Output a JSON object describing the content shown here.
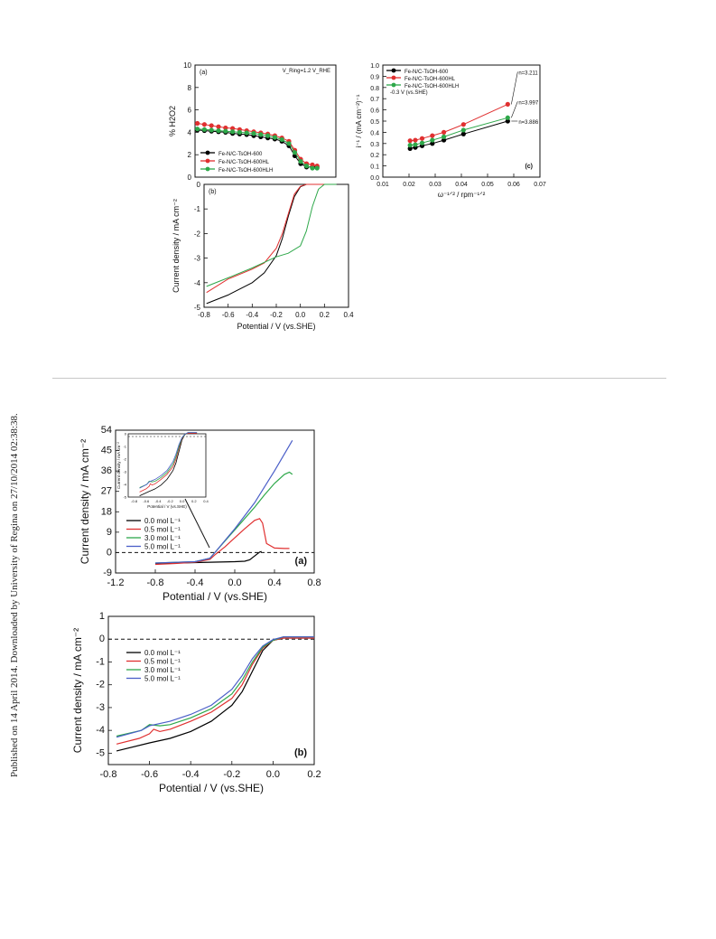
{
  "side_note": "Published on 14 April 2014. Downloaded by University of Regina on 27/10/2014 02:38:38.",
  "chart_data": [
    {
      "type": "scatter",
      "panel_label": "(a)",
      "annotation": "V_Ring=1.2 V_RHE",
      "xlabel": "",
      "ylabel": "% H2O2",
      "xlim": [
        -0.8,
        0.4
      ],
      "ylim": [
        0,
        10
      ],
      "yticks": [
        "0",
        "2",
        "4",
        "6",
        "8",
        "10"
      ],
      "legend_position": "lower-left",
      "series": [
        {
          "name": "Fe-N/C-TsOH-600",
          "color": "#000000",
          "x": [
            -0.78,
            -0.72,
            -0.66,
            -0.6,
            -0.54,
            -0.48,
            -0.42,
            -0.36,
            -0.3,
            -0.24,
            -0.18,
            -0.12,
            -0.06,
            0.0,
            0.05,
            0.1,
            0.15,
            0.2,
            0.24
          ],
          "y": [
            4.2,
            4.15,
            4.1,
            4.05,
            4.0,
            3.9,
            3.85,
            3.8,
            3.7,
            3.6,
            3.5,
            3.4,
            3.2,
            2.8,
            1.9,
            1.2,
            0.9,
            0.9,
            0.9
          ]
        },
        {
          "name": "Fe-N/C-TsOH-600HL",
          "color": "#e03030",
          "x": [
            -0.78,
            -0.72,
            -0.66,
            -0.6,
            -0.54,
            -0.48,
            -0.42,
            -0.36,
            -0.3,
            -0.24,
            -0.18,
            -0.12,
            -0.06,
            0.0,
            0.05,
            0.1,
            0.15,
            0.2,
            0.24
          ],
          "y": [
            4.8,
            4.7,
            4.6,
            4.5,
            4.4,
            4.35,
            4.25,
            4.15,
            4.05,
            3.95,
            3.85,
            3.7,
            3.5,
            3.2,
            2.4,
            1.6,
            1.2,
            1.1,
            1.0
          ]
        },
        {
          "name": "Fe-N/C-TsOH-600HLH",
          "color": "#2ea84a",
          "x": [
            -0.78,
            -0.72,
            -0.66,
            -0.6,
            -0.54,
            -0.48,
            -0.42,
            -0.36,
            -0.3,
            -0.24,
            -0.18,
            -0.12,
            -0.06,
            0.0,
            0.05,
            0.1,
            0.15,
            0.2,
            0.24
          ],
          "y": [
            4.3,
            4.25,
            4.2,
            4.15,
            4.1,
            4.05,
            4.0,
            3.95,
            3.9,
            3.8,
            3.7,
            3.55,
            3.35,
            3.0,
            2.2,
            1.4,
            1.0,
            0.8,
            0.8
          ]
        }
      ]
    },
    {
      "type": "line",
      "panel_label": "(b)",
      "xlabel": "Potential / V (vs.SHE)",
      "ylabel": "Current density / mA cm⁻²",
      "xlim": [
        -0.8,
        0.4
      ],
      "ylim": [
        -5,
        0
      ],
      "xticks": [
        "-0.8",
        "-0.6",
        "-0.4",
        "-0.2",
        "0.0",
        "0.2",
        "0.4"
      ],
      "yticks": [
        "0",
        "-1",
        "-2",
        "-3",
        "-4",
        "-5"
      ],
      "series": [
        {
          "name": "Fe-N/C-TsOH-600",
          "color": "#000000",
          "x": [
            -0.78,
            -0.6,
            -0.4,
            -0.3,
            -0.2,
            -0.15,
            -0.1,
            -0.05,
            0.0,
            0.05,
            0.1,
            0.2,
            0.25
          ],
          "y": [
            -4.85,
            -4.5,
            -4.0,
            -3.6,
            -2.9,
            -2.2,
            -1.3,
            -0.5,
            -0.1,
            0.0,
            0.0,
            0.0,
            0.0
          ]
        },
        {
          "name": "Fe-N/C-TsOH-600HL",
          "color": "#e03030",
          "x": [
            -0.78,
            -0.6,
            -0.4,
            -0.3,
            -0.2,
            -0.15,
            -0.1,
            -0.05,
            0.0,
            0.05,
            0.1,
            0.2,
            0.25
          ],
          "y": [
            -4.4,
            -3.85,
            -3.45,
            -3.2,
            -2.6,
            -2.0,
            -1.2,
            -0.4,
            -0.08,
            0.0,
            0.0,
            0.0,
            0.0
          ]
        },
        {
          "name": "Fe-N/C-TsOH-600HLH",
          "color": "#2ea84a",
          "x": [
            -0.78,
            -0.6,
            -0.4,
            -0.2,
            -0.1,
            0.0,
            0.05,
            0.1,
            0.15,
            0.2,
            0.3
          ],
          "y": [
            -4.15,
            -3.8,
            -3.4,
            -2.95,
            -2.8,
            -2.5,
            -1.9,
            -0.9,
            -0.2,
            0.0,
            0.0
          ]
        }
      ]
    },
    {
      "type": "scatter",
      "panel_label": "(c)",
      "annotation": "-0.3 V (vs.SHE)",
      "xlabel": "ω⁻¹ᐟ² / rpm⁻¹ᐟ²",
      "ylabel": "i⁻¹ / (mA cm⁻²)⁻¹",
      "xlim": [
        0.01,
        0.07
      ],
      "ylim": [
        0,
        1.0
      ],
      "xticks": [
        "0.01",
        "0.02",
        "0.03",
        "0.04",
        "0.05",
        "0.06",
        "0.07"
      ],
      "yticks": [
        "0.0",
        "0.1",
        "0.2",
        "0.3",
        "0.4",
        "0.5",
        "0.6",
        "0.7",
        "0.8",
        "0.9",
        "1.0"
      ],
      "legend_position": "top-left",
      "series": [
        {
          "name": "Fe-N/C-TsOH-600",
          "color": "#000000",
          "fit_label": "n=3.886",
          "x": [
            0.0204,
            0.0224,
            0.025,
            0.0289,
            0.0333,
            0.0408,
            0.0577
          ],
          "y": [
            0.255,
            0.265,
            0.28,
            0.3,
            0.33,
            0.385,
            0.5
          ]
        },
        {
          "name": "Fe-N/C-TsOH-600HL",
          "color": "#e03030",
          "fit_label": "n=3.211",
          "x": [
            0.0204,
            0.0224,
            0.025,
            0.0289,
            0.0333,
            0.0408,
            0.0577
          ],
          "y": [
            0.325,
            0.33,
            0.345,
            0.37,
            0.4,
            0.47,
            0.65
          ]
        },
        {
          "name": "Fe-N/C-TsOH-600HLH",
          "color": "#2ea84a",
          "fit_label": "n=3.997",
          "x": [
            0.0204,
            0.0224,
            0.025,
            0.0289,
            0.0333,
            0.0408,
            0.0577
          ],
          "y": [
            0.285,
            0.29,
            0.305,
            0.33,
            0.36,
            0.42,
            0.53
          ]
        }
      ]
    },
    {
      "type": "line",
      "panel_label": "(a)",
      "xlabel": "Potential / V (vs.SHE)",
      "ylabel": "Current density / mA cm⁻²",
      "xlim": [
        -1.2,
        0.8
      ],
      "ylim": [
        -9,
        54
      ],
      "xticks": [
        "-1.2",
        "-0.8",
        "-0.4",
        "0.0",
        "0.4",
        "0.8"
      ],
      "yticks": [
        "-9",
        "0",
        "9",
        "18",
        "27",
        "36",
        "45",
        "54"
      ],
      "legend_position": "lower-left",
      "series": [
        {
          "name": "0.0 mol L⁻¹",
          "color": "#000000",
          "x": [
            -0.8,
            -0.6,
            -0.4,
            -0.2,
            0.0,
            0.1,
            0.15,
            0.2,
            0.25,
            0.27
          ],
          "y": [
            -4.8,
            -4.6,
            -4.4,
            -4.2,
            -4.0,
            -3.8,
            -3.2,
            -1.5,
            0.2,
            0.5
          ]
        },
        {
          "name": "0.5 mol L⁻¹",
          "color": "#e03030",
          "x": [
            -0.8,
            -0.6,
            -0.4,
            -0.25,
            -0.2,
            -0.1,
            0.0,
            0.1,
            0.2,
            0.25,
            0.28,
            0.32,
            0.4,
            0.5,
            0.55
          ],
          "y": [
            -5.2,
            -4.8,
            -4.3,
            -3.0,
            -1.0,
            2.5,
            6.5,
            10.5,
            14.2,
            15.0,
            13.0,
            4.0,
            2.0,
            1.8,
            1.8
          ]
        },
        {
          "name": "3.0 mol L⁻¹",
          "color": "#2ea84a",
          "x": [
            -0.8,
            -0.6,
            -0.4,
            -0.25,
            -0.2,
            0.0,
            0.2,
            0.3,
            0.4,
            0.5,
            0.55,
            0.58
          ],
          "y": [
            -4.6,
            -4.3,
            -4.0,
            -2.5,
            0.0,
            10.0,
            20.0,
            25.5,
            30.5,
            34.5,
            35.5,
            34.5
          ]
        },
        {
          "name": "5.0 mol L⁻¹",
          "color": "#4a5ec8",
          "x": [
            -0.8,
            -0.6,
            -0.4,
            -0.25,
            -0.2,
            0.0,
            0.2,
            0.4,
            0.58
          ],
          "y": [
            -4.6,
            -4.3,
            -4.0,
            -2.5,
            0.0,
            10.5,
            22.0,
            36.0,
            49.5
          ]
        }
      ],
      "inset": {
        "xlabel": "Potential / V (vs.SHE)",
        "ylabel": "Current density / mA cm⁻²",
        "xlim": [
          -0.9,
          0.4
        ],
        "ylim": [
          -5,
          0
        ],
        "xticks": [
          "-0.8",
          "-0.6",
          "-0.4",
          "-0.2",
          "0.0",
          "0.2",
          "0.4"
        ],
        "yticks": [
          "0",
          "-1",
          "-2",
          "-3",
          "-4",
          "-5"
        ]
      }
    },
    {
      "type": "line",
      "panel_label": "(b)",
      "xlabel": "Potential / V (vs.SHE)",
      "ylabel": "Current density / mA cm⁻²",
      "xlim": [
        -0.8,
        0.2
      ],
      "ylim": [
        -5.5,
        1
      ],
      "xticks": [
        "-0.8",
        "-0.6",
        "-0.4",
        "-0.2",
        "0.0",
        "0.2"
      ],
      "yticks": [
        "1",
        "0",
        "-1",
        "-2",
        "-3",
        "-4",
        "-5"
      ],
      "legend_position": "top-left",
      "series": [
        {
          "name": "0.0 mol L⁻¹",
          "color": "#000000",
          "x": [
            -0.76,
            -0.6,
            -0.5,
            -0.4,
            -0.3,
            -0.2,
            -0.15,
            -0.1,
            -0.05,
            0.0,
            0.05,
            0.1,
            0.2
          ],
          "y": [
            -4.9,
            -4.55,
            -4.35,
            -4.05,
            -3.6,
            -2.9,
            -2.3,
            -1.4,
            -0.5,
            -0.05,
            0.05,
            0.05,
            0.05
          ]
        },
        {
          "name": "0.5 mol L⁻¹",
          "color": "#e03030",
          "x": [
            -0.76,
            -0.65,
            -0.6,
            -0.58,
            -0.55,
            -0.5,
            -0.4,
            -0.3,
            -0.2,
            -0.15,
            -0.1,
            -0.05,
            0.0,
            0.05,
            0.1,
            0.2
          ],
          "y": [
            -4.6,
            -4.35,
            -4.15,
            -3.95,
            -4.05,
            -3.95,
            -3.6,
            -3.2,
            -2.6,
            -2.0,
            -1.1,
            -0.4,
            -0.05,
            0.05,
            0.05,
            0.05
          ]
        },
        {
          "name": "3.0 mol L⁻¹",
          "color": "#2ea84a",
          "x": [
            -0.76,
            -0.64,
            -0.6,
            -0.55,
            -0.5,
            -0.4,
            -0.3,
            -0.2,
            -0.15,
            -0.1,
            -0.05,
            0.0,
            0.05,
            0.1,
            0.2
          ],
          "y": [
            -4.25,
            -4.0,
            -3.75,
            -3.8,
            -3.75,
            -3.45,
            -3.05,
            -2.4,
            -1.8,
            -1.0,
            -0.35,
            -0.05,
            0.1,
            0.1,
            0.1
          ]
        },
        {
          "name": "5.0 mol L⁻¹",
          "color": "#4a5ec8",
          "x": [
            -0.76,
            -0.64,
            -0.6,
            -0.55,
            -0.5,
            -0.4,
            -0.3,
            -0.2,
            -0.15,
            -0.1,
            -0.05,
            0.0,
            0.05,
            0.1,
            0.2
          ],
          "y": [
            -4.3,
            -4.0,
            -3.8,
            -3.7,
            -3.6,
            -3.3,
            -2.9,
            -2.2,
            -1.6,
            -0.85,
            -0.3,
            -0.02,
            0.1,
            0.1,
            0.1
          ]
        }
      ]
    }
  ]
}
